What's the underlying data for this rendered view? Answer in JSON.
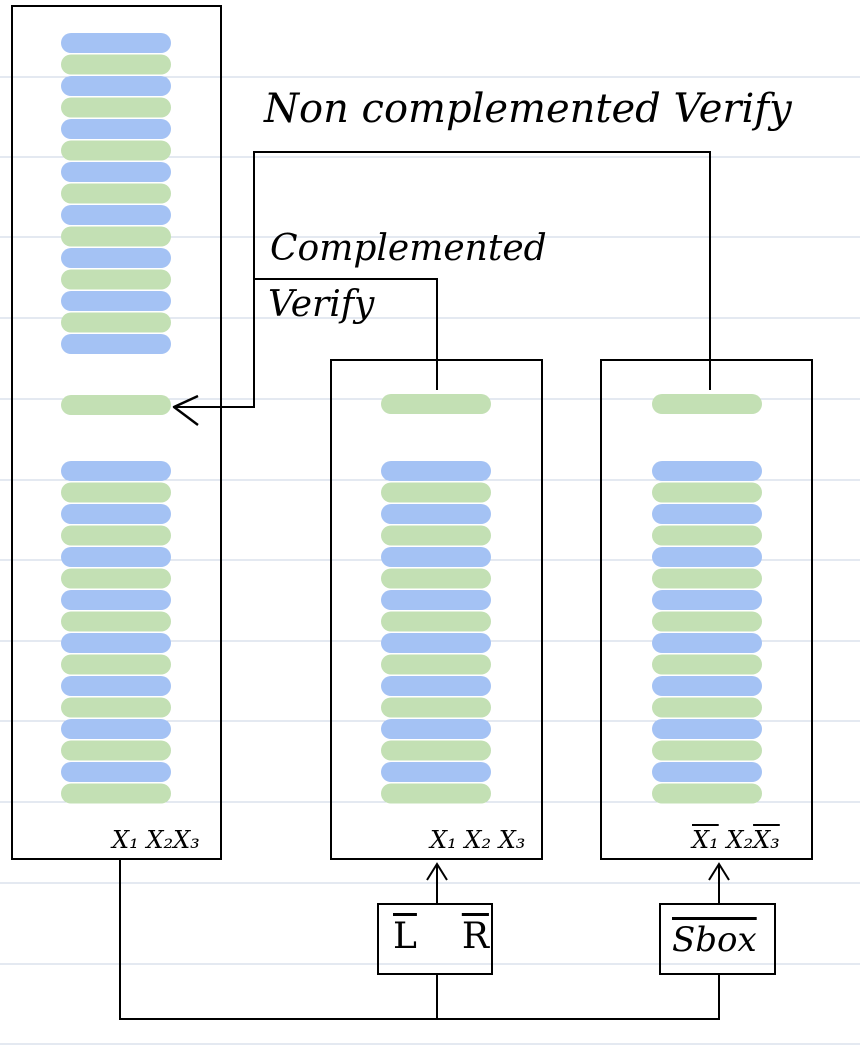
{
  "labels": {
    "non_complemented": "Non complemented Verify",
    "complemented_line1": "Complemented",
    "complemented_line2": "Verify"
  },
  "columns": {
    "left": {
      "x1": "X₁",
      "x2": "X₂",
      "x3": "X₃",
      "x1_overline": false,
      "x3_overline": false
    },
    "middle": {
      "x1": "X₁",
      "x2": "X₂",
      "x3": "X₃",
      "x1_overline": false,
      "x3_overline": false
    },
    "right": {
      "x1": "X₁",
      "x2": "X₂",
      "x3": "X₃",
      "x1_overline": true,
      "x3_overline": true
    }
  },
  "boxes": {
    "lr": {
      "l": "L",
      "r": "R",
      "overline": true
    },
    "sbox": {
      "text": "Sbox",
      "overline": true
    }
  },
  "colors": {
    "blue": "#a4c2f4",
    "green": "#c3e0b4",
    "ruling": "#c9d3e3",
    "ink": "#000000"
  }
}
